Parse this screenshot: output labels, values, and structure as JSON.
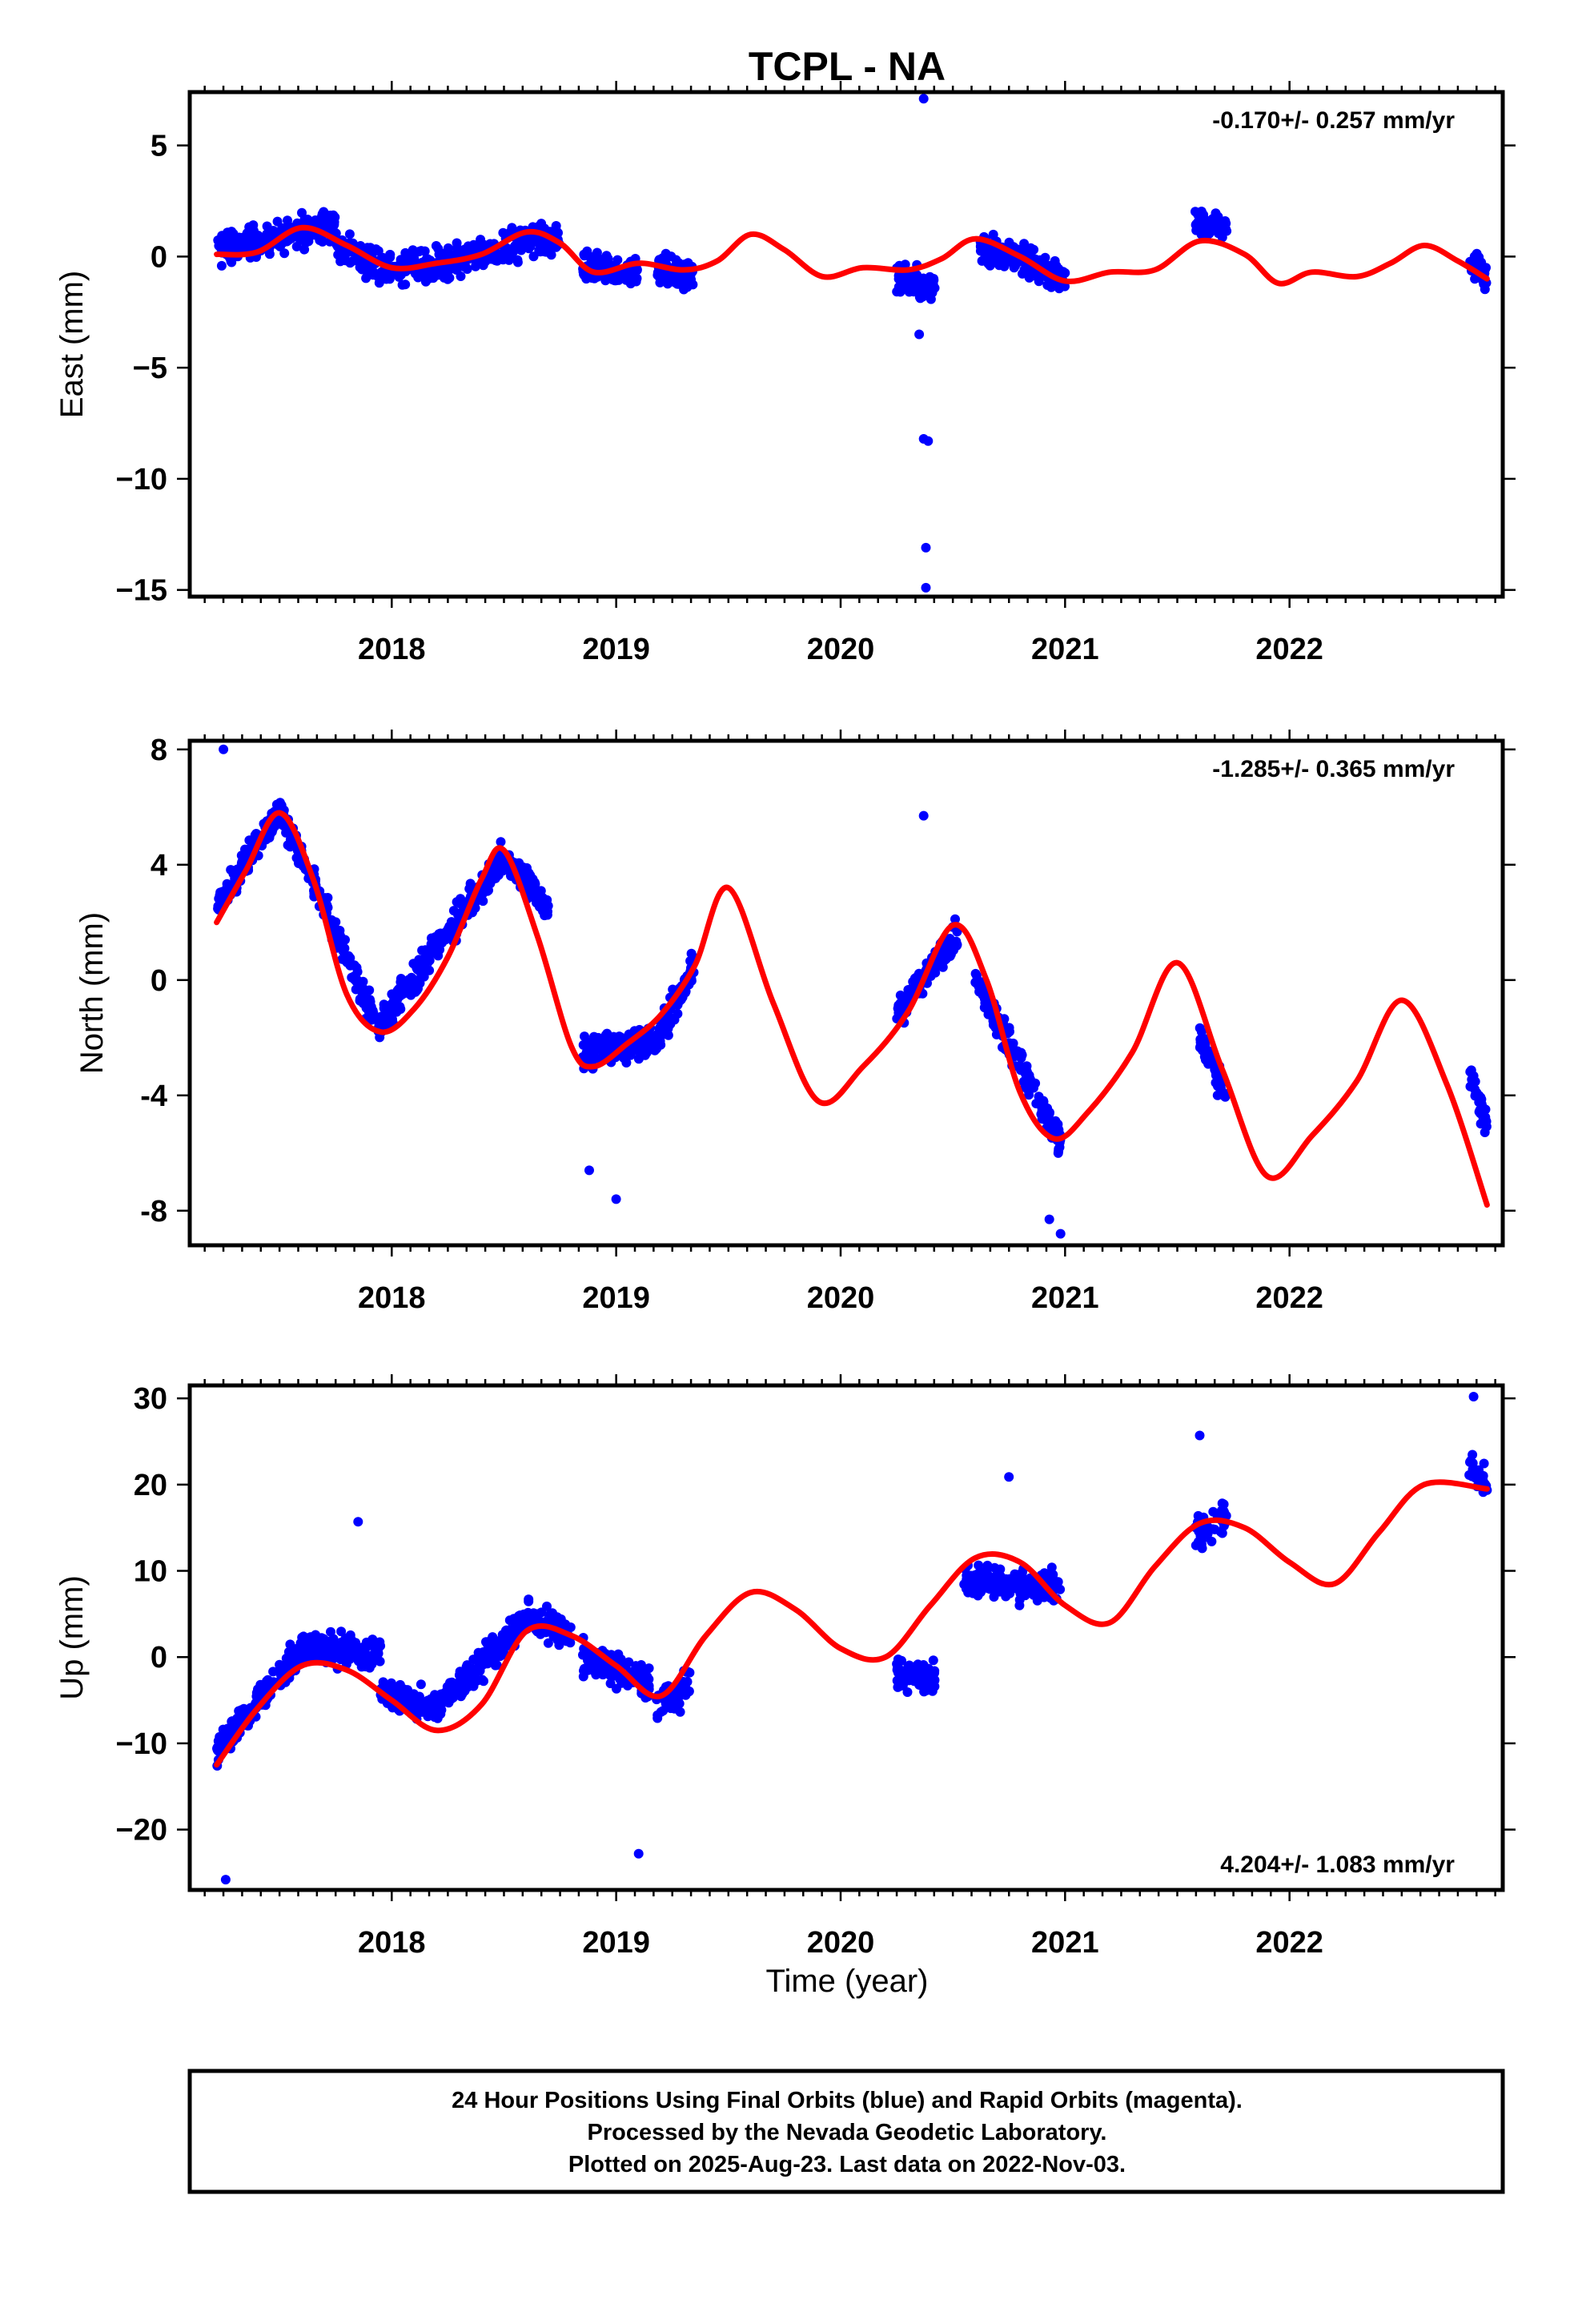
{
  "title": "TCPL - NA",
  "colors": {
    "final_orbits": "#0000ff",
    "model": "#ff0000",
    "frame": "#000000"
  },
  "xlabel": "Time (year)",
  "footer": {
    "line1": "24 Hour Positions Using Final Orbits (blue) and Rapid Orbits (magenta).",
    "line2": "Processed by the Nevada Geodetic Laboratory.",
    "line3": "Plotted on 2025-Aug-23. Last data on 2022-Nov-03."
  },
  "chart_data": [
    {
      "type": "scatter",
      "ylabel": "East (mm)",
      "rate": "-0.170+/- 0.257 mm/yr",
      "xlim": [
        2017.1,
        2022.95
      ],
      "ylim": [
        -15.3,
        7.4
      ],
      "x_ticks": [
        2018,
        2019,
        2020,
        2021,
        2022
      ],
      "y_ticks": [
        5,
        0,
        -5,
        -10,
        -15
      ],
      "y_tick_labels": [
        "5",
        "0",
        "−5",
        "−10",
        "−15"
      ],
      "series": [
        {
          "kind": "points",
          "segments": [
            {
              "x": [
                2017.22,
                2017.45
              ],
              "y": [
                0.3,
                0.8
              ]
            },
            {
              "x": [
                2017.45,
                2017.75
              ],
              "y": [
                0.8,
                1.5
              ]
            },
            {
              "x": [
                2017.75,
                2018.0
              ],
              "y": [
                0.5,
                -0.6
              ]
            },
            {
              "x": [
                2018.0,
                2018.35
              ],
              "y": [
                -0.6,
                -0.1
              ]
            },
            {
              "x": [
                2018.35,
                2018.75
              ],
              "y": [
                0.0,
                0.9
              ]
            },
            {
              "x": [
                2018.85,
                2019.1
              ],
              "y": [
                -0.5,
                -0.8
              ]
            },
            {
              "x": [
                2019.18,
                2019.35
              ],
              "y": [
                -0.5,
                -0.9
              ]
            },
            {
              "x": [
                2020.25,
                2020.42
              ],
              "y": [
                -1.0,
                -1.5
              ]
            },
            {
              "x": [
                2020.62,
                2021.0
              ],
              "y": [
                0.5,
                -1.0
              ]
            },
            {
              "x": [
                2021.58,
                2021.72
              ],
              "y": [
                1.6,
                1.5
              ]
            },
            {
              "x": [
                2022.8,
                2022.88
              ],
              "y": [
                -0.3,
                -0.8
              ]
            }
          ],
          "outliers": [
            {
              "x": 2020.37,
              "y": -8.2
            },
            {
              "x": 2020.38,
              "y": -13.1
            },
            {
              "x": 2020.38,
              "y": -14.9
            },
            {
              "x": 2020.39,
              "y": -8.3
            },
            {
              "x": 2020.37,
              "y": 7.1
            },
            {
              "x": 2020.35,
              "y": -3.5
            }
          ]
        },
        {
          "kind": "line",
          "x": [
            2017.22,
            2017.4,
            2017.6,
            2017.8,
            2018.0,
            2018.2,
            2018.4,
            2018.6,
            2018.75,
            2018.9,
            2019.1,
            2019.3,
            2019.45,
            2019.6,
            2019.75,
            2019.92,
            2020.1,
            2020.3,
            2020.45,
            2020.6,
            2020.8,
            2021.0,
            2021.2,
            2021.4,
            2021.6,
            2021.8,
            2021.95,
            2022.1,
            2022.3,
            2022.45,
            2022.6,
            2022.75,
            2022.88
          ],
          "y": [
            0.1,
            0.2,
            1.3,
            0.5,
            -0.5,
            -0.3,
            0.1,
            1.1,
            0.6,
            -0.7,
            -0.3,
            -0.6,
            -0.2,
            1.0,
            0.3,
            -0.9,
            -0.5,
            -0.6,
            -0.1,
            0.8,
            0.0,
            -1.1,
            -0.7,
            -0.6,
            0.7,
            0.1,
            -1.2,
            -0.7,
            -0.9,
            -0.3,
            0.5,
            -0.2,
            -1.0
          ]
        }
      ]
    },
    {
      "type": "scatter",
      "ylabel": "North (mm)",
      "rate": "-1.285+/- 0.365 mm/yr",
      "xlim": [
        2017.1,
        2022.95
      ],
      "ylim": [
        -9.2,
        8.3
      ],
      "x_ticks": [
        2018,
        2019,
        2020,
        2021,
        2022
      ],
      "y_ticks": [
        8,
        4,
        0,
        -4,
        -8
      ],
      "y_tick_labels": [
        "8",
        "4",
        "0",
        "-4",
        "-8"
      ],
      "series": [
        {
          "kind": "points",
          "segments": [
            {
              "x": [
                2017.22,
                2017.5
              ],
              "y": [
                2.5,
                5.9
              ]
            },
            {
              "x": [
                2017.5,
                2017.95
              ],
              "y": [
                5.9,
                -1.8
              ]
            },
            {
              "x": [
                2017.95,
                2018.5
              ],
              "y": [
                -1.5,
                4.3
              ]
            },
            {
              "x": [
                2018.5,
                2018.7
              ],
              "y": [
                4.3,
                2.5
              ]
            },
            {
              "x": [
                2018.85,
                2019.2
              ],
              "y": [
                -2.6,
                -2.0
              ]
            },
            {
              "x": [
                2019.2,
                2019.35
              ],
              "y": [
                -1.8,
                0.5
              ]
            },
            {
              "x": [
                2020.25,
                2020.52
              ],
              "y": [
                -1.2,
                1.6
              ]
            },
            {
              "x": [
                2020.6,
                2020.98
              ],
              "y": [
                0.0,
                -5.6
              ]
            },
            {
              "x": [
                2021.6,
                2021.72
              ],
              "y": [
                -2.0,
                -4.0
              ]
            },
            {
              "x": [
                2022.8,
                2022.88
              ],
              "y": [
                -3.2,
                -5.0
              ]
            }
          ],
          "outliers": [
            {
              "x": 2017.25,
              "y": 8.0
            },
            {
              "x": 2018.88,
              "y": -6.6
            },
            {
              "x": 2019.0,
              "y": -7.6
            },
            {
              "x": 2020.37,
              "y": 5.7
            },
            {
              "x": 2020.98,
              "y": -8.8
            },
            {
              "x": 2020.93,
              "y": -8.3
            }
          ]
        },
        {
          "kind": "line",
          "x": [
            2017.22,
            2017.35,
            2017.5,
            2017.65,
            2017.8,
            2017.95,
            2018.1,
            2018.25,
            2018.4,
            2018.5,
            2018.65,
            2018.8,
            2018.9,
            2019.05,
            2019.2,
            2019.35,
            2019.5,
            2019.7,
            2019.9,
            2020.1,
            2020.3,
            2020.5,
            2020.65,
            2020.8,
            2020.95,
            2021.1,
            2021.3,
            2021.5,
            2021.7,
            2021.9,
            2022.1,
            2022.3,
            2022.5,
            2022.7,
            2022.88
          ],
          "y": [
            2.0,
            3.8,
            5.8,
            3.5,
            -0.5,
            -1.8,
            -1.0,
            0.8,
            3.5,
            4.5,
            1.5,
            -2.3,
            -3.0,
            -2.2,
            -1.2,
            0.5,
            3.2,
            -0.8,
            -4.2,
            -3.0,
            -1.1,
            1.9,
            0.0,
            -3.9,
            -5.5,
            -4.6,
            -2.5,
            0.6,
            -3.1,
            -6.8,
            -5.4,
            -3.5,
            -0.7,
            -3.6,
            -7.8
          ]
        }
      ]
    },
    {
      "type": "scatter",
      "ylabel": "Up (mm)",
      "rate": "4.204+/- 1.083 mm/yr",
      "xlim": [
        2017.1,
        2022.95
      ],
      "ylim": [
        -27,
        31.5
      ],
      "x_ticks": [
        2018,
        2019,
        2020,
        2021,
        2022
      ],
      "y_ticks": [
        30,
        20,
        10,
        0,
        -10,
        -20
      ],
      "y_tick_labels": [
        "30",
        "20",
        "10",
        "0",
        "−10",
        "−20"
      ],
      "series": [
        {
          "kind": "points",
          "segments": [
            {
              "x": [
                2017.22,
                2017.6
              ],
              "y": [
                -11.0,
                1.0
              ]
            },
            {
              "x": [
                2017.6,
                2017.95
              ],
              "y": [
                1.0,
                0.5
              ]
            },
            {
              "x": [
                2017.95,
                2018.2
              ],
              "y": [
                -4.0,
                -6.0
              ]
            },
            {
              "x": [
                2018.2,
                2018.6
              ],
              "y": [
                -6.0,
                4.5
              ]
            },
            {
              "x": [
                2018.6,
                2018.8
              ],
              "y": [
                4.5,
                3.0
              ]
            },
            {
              "x": [
                2018.85,
                2019.15
              ],
              "y": [
                0.0,
                -3.0
              ]
            },
            {
              "x": [
                2019.18,
                2019.33
              ],
              "y": [
                -6.0,
                -3.0
              ]
            },
            {
              "x": [
                2020.25,
                2020.42
              ],
              "y": [
                -2.0,
                -2.5
              ]
            },
            {
              "x": [
                2020.55,
                2020.98
              ],
              "y": [
                9.0,
                8.0
              ]
            },
            {
              "x": [
                2021.58,
                2021.72
              ],
              "y": [
                14.0,
                16.0
              ]
            },
            {
              "x": [
                2022.8,
                2022.88
              ],
              "y": [
                22.0,
                20.0
              ]
            }
          ],
          "outliers": [
            {
              "x": 2017.26,
              "y": -25.8
            },
            {
              "x": 2019.1,
              "y": -22.8
            },
            {
              "x": 2022.82,
              "y": 30.2
            },
            {
              "x": 2021.6,
              "y": 25.7
            },
            {
              "x": 2020.75,
              "y": 20.9
            },
            {
              "x": 2017.85,
              "y": 15.7
            }
          ]
        },
        {
          "kind": "line",
          "x": [
            2017.22,
            2017.4,
            2017.6,
            2017.8,
            2018.0,
            2018.2,
            2018.4,
            2018.6,
            2018.8,
            2019.0,
            2019.2,
            2019.4,
            2019.6,
            2019.8,
            2020.0,
            2020.2,
            2020.4,
            2020.6,
            2020.8,
            2021.0,
            2021.2,
            2021.4,
            2021.6,
            2021.8,
            2022.0,
            2022.2,
            2022.4,
            2022.6,
            2022.88
          ],
          "y": [
            -12.5,
            -6.0,
            -1.0,
            -1.5,
            -5.0,
            -8.5,
            -5.5,
            3.0,
            2.5,
            -1.0,
            -4.5,
            2.5,
            7.5,
            5.5,
            1.0,
            0.0,
            6.0,
            11.5,
            11.0,
            6.0,
            4.0,
            10.5,
            15.5,
            15.0,
            11.0,
            8.5,
            14.5,
            20.0,
            19.5
          ]
        }
      ]
    }
  ]
}
